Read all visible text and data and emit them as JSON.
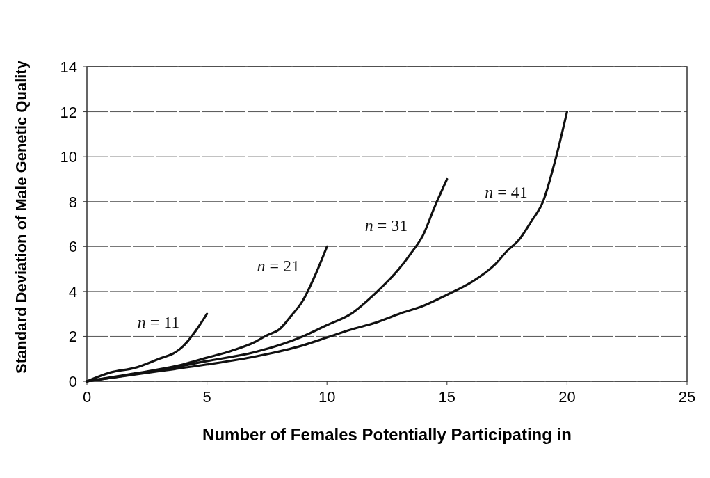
{
  "chart_data": {
    "type": "line",
    "xlabel": "Number of Females Potentially Participating in",
    "ylabel": "Standard Deviation of Male Genetic Quality",
    "xlim": [
      0,
      25
    ],
    "xticks": [
      0,
      5,
      10,
      15,
      20,
      25
    ],
    "ylim": [
      0,
      14
    ],
    "yticks": [
      0,
      2,
      4,
      6,
      8,
      10,
      12,
      14
    ],
    "grid": "y",
    "marker": "none",
    "line_style": "solid",
    "series": [
      {
        "name": "n = 11",
        "color": "#111111",
        "x": [
          0,
          1,
          2,
          3,
          3.7,
          4,
          4.5,
          5
        ],
        "values": [
          0,
          0.4,
          0.6,
          1.0,
          1.3,
          1.55,
          2.2,
          3
        ]
      },
      {
        "name": "n = 21",
        "color": "#111111",
        "x": [
          0,
          2,
          4,
          5,
          6,
          7,
          7.5,
          8,
          8.5,
          9,
          9.5,
          10
        ],
        "values": [
          0,
          0.35,
          0.75,
          1.05,
          1.35,
          1.75,
          2.05,
          2.3,
          2.9,
          3.6,
          4.7,
          6
        ]
      },
      {
        "name": "n = 31",
        "color": "#111111",
        "x": [
          0,
          3,
          5,
          7,
          9,
          10,
          11,
          12,
          13,
          13.5,
          14,
          14.5,
          15
        ],
        "values": [
          0,
          0.5,
          0.9,
          1.3,
          2.0,
          2.5,
          3.0,
          3.9,
          5.0,
          5.7,
          6.5,
          7.8,
          9
        ]
      },
      {
        "name": "n = 41",
        "color": "#111111",
        "x": [
          0,
          3,
          5,
          7,
          9,
          10,
          11,
          12,
          13,
          14,
          15,
          16,
          17,
          17.5,
          18,
          18.5,
          19,
          19.5,
          20
        ],
        "values": [
          0,
          0.45,
          0.75,
          1.1,
          1.6,
          1.95,
          2.3,
          2.6,
          3.0,
          3.35,
          3.85,
          4.4,
          5.2,
          5.8,
          6.3,
          7.1,
          8,
          9.8,
          12
        ]
      }
    ]
  }
}
